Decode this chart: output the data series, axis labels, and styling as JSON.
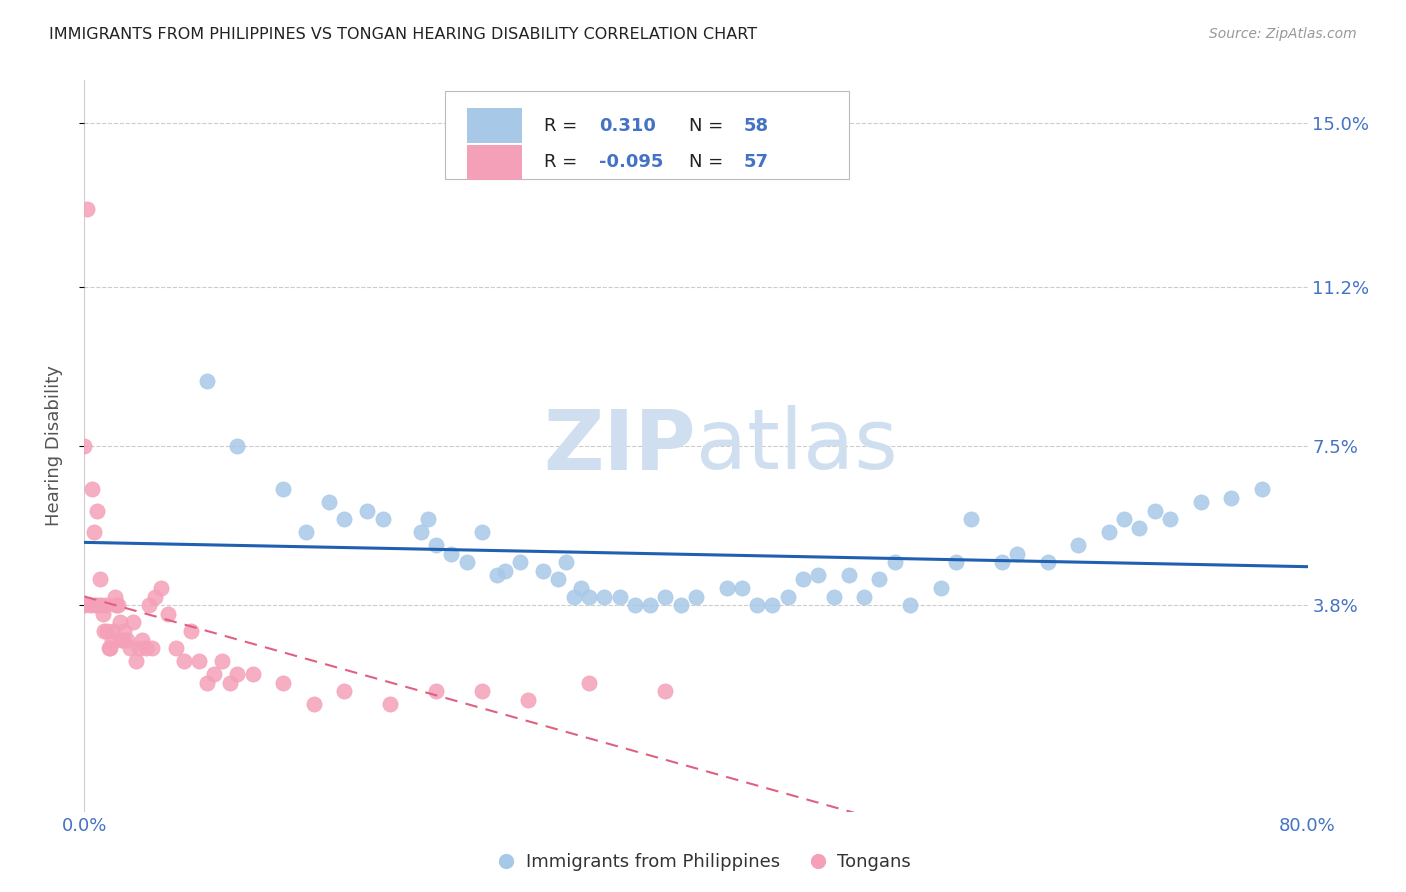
{
  "title": "IMMIGRANTS FROM PHILIPPINES VS TONGAN HEARING DISABILITY CORRELATION CHART",
  "source": "Source: ZipAtlas.com",
  "ylabel": "Hearing Disability",
  "xlim": [
    0.0,
    0.8
  ],
  "ylim": [
    -0.01,
    0.16
  ],
  "yticks": [
    0.038,
    0.075,
    0.112,
    0.15
  ],
  "ytick_labels": [
    "3.8%",
    "7.5%",
    "11.2%",
    "15.0%"
  ],
  "xticks": [
    0.0,
    0.2,
    0.4,
    0.6,
    0.8
  ],
  "xtick_labels": [
    "0.0%",
    "",
    "",
    "",
    "80.0%"
  ],
  "r_blue": 0.31,
  "n_blue": 58,
  "r_pink": -0.095,
  "n_pink": 57,
  "blue_color": "#a8c8e8",
  "pink_color": "#f4a0b8",
  "blue_line_color": "#2060b0",
  "pink_line_color": "#e06080",
  "title_color": "#222222",
  "axis_label_color": "#4472c4",
  "tick_label_color": "#4472c4",
  "watermark_color": "#d0dff0",
  "background_color": "#ffffff",
  "grid_color": "#cccccc",
  "blue_scatter_x": [
    0.08,
    0.1,
    0.13,
    0.145,
    0.16,
    0.185,
    0.17,
    0.195,
    0.22,
    0.225,
    0.23,
    0.24,
    0.25,
    0.26,
    0.27,
    0.275,
    0.285,
    0.3,
    0.31,
    0.315,
    0.32,
    0.325,
    0.33,
    0.34,
    0.35,
    0.36,
    0.37,
    0.38,
    0.39,
    0.4,
    0.42,
    0.43,
    0.44,
    0.45,
    0.46,
    0.47,
    0.48,
    0.49,
    0.5,
    0.51,
    0.52,
    0.53,
    0.54,
    0.56,
    0.57,
    0.58,
    0.6,
    0.61,
    0.63,
    0.65,
    0.67,
    0.68,
    0.69,
    0.7,
    0.71,
    0.73,
    0.75,
    0.77
  ],
  "blue_scatter_y": [
    0.09,
    0.075,
    0.065,
    0.055,
    0.062,
    0.06,
    0.058,
    0.058,
    0.055,
    0.058,
    0.052,
    0.05,
    0.048,
    0.055,
    0.045,
    0.046,
    0.048,
    0.046,
    0.044,
    0.048,
    0.04,
    0.042,
    0.04,
    0.04,
    0.04,
    0.038,
    0.038,
    0.04,
    0.038,
    0.04,
    0.042,
    0.042,
    0.038,
    0.038,
    0.04,
    0.044,
    0.045,
    0.04,
    0.045,
    0.04,
    0.044,
    0.048,
    0.038,
    0.042,
    0.048,
    0.058,
    0.048,
    0.05,
    0.048,
    0.052,
    0.055,
    0.058,
    0.056,
    0.06,
    0.058,
    0.062,
    0.063,
    0.065
  ],
  "pink_scatter_x": [
    0.0,
    0.0,
    0.002,
    0.004,
    0.005,
    0.006,
    0.007,
    0.008,
    0.009,
    0.01,
    0.011,
    0.012,
    0.013,
    0.014,
    0.015,
    0.016,
    0.017,
    0.018,
    0.019,
    0.02,
    0.021,
    0.022,
    0.023,
    0.024,
    0.025,
    0.026,
    0.028,
    0.03,
    0.032,
    0.034,
    0.036,
    0.038,
    0.04,
    0.042,
    0.044,
    0.046,
    0.05,
    0.055,
    0.06,
    0.065,
    0.07,
    0.075,
    0.08,
    0.085,
    0.09,
    0.095,
    0.1,
    0.11,
    0.13,
    0.15,
    0.17,
    0.2,
    0.23,
    0.26,
    0.29,
    0.33,
    0.38
  ],
  "pink_scatter_y": [
    0.075,
    0.038,
    0.13,
    0.038,
    0.065,
    0.055,
    0.038,
    0.06,
    0.038,
    0.044,
    0.038,
    0.036,
    0.032,
    0.038,
    0.032,
    0.028,
    0.028,
    0.03,
    0.032,
    0.04,
    0.038,
    0.038,
    0.034,
    0.03,
    0.03,
    0.032,
    0.03,
    0.028,
    0.034,
    0.025,
    0.028,
    0.03,
    0.028,
    0.038,
    0.028,
    0.04,
    0.042,
    0.036,
    0.028,
    0.025,
    0.032,
    0.025,
    0.02,
    0.022,
    0.025,
    0.02,
    0.022,
    0.022,
    0.02,
    0.015,
    0.018,
    0.015,
    0.018,
    0.018,
    0.016,
    0.02,
    0.018
  ]
}
